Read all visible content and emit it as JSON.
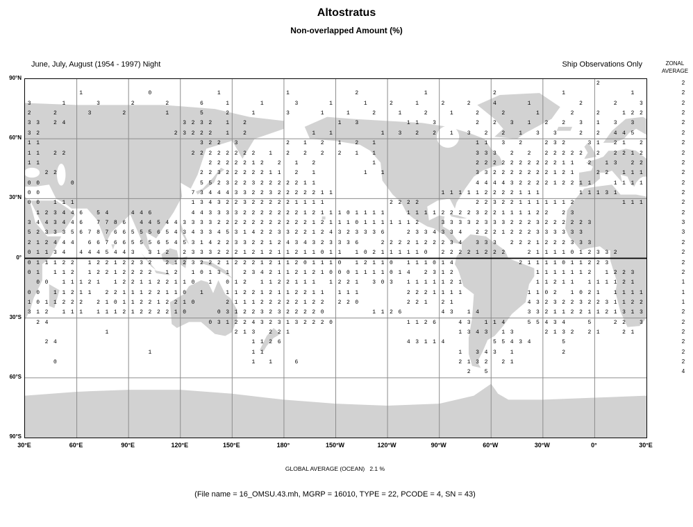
{
  "title": "Altostratus",
  "subtitle": "Non-overlapped Amount (%)",
  "header": {
    "left": "June, July, August (1954 - 1997) Night",
    "right": "Ship Observations Only",
    "zonal_line1": "ZONAL",
    "zonal_line2": "AVERAGE"
  },
  "footer": {
    "global_average": "GLOBAL AVERAGE (OCEAN)   2.1 %",
    "file_info": "(File name = 16_OMSU.43.mh, MGRP = 16010, TYPE = 22, PCODE = 4, SN = 43)"
  },
  "colors": {
    "land": "#d2d2d2",
    "grid": "#8c8c8c",
    "axis": "#000000",
    "text": "#000000"
  },
  "chart_data": {
    "type": "heatmap",
    "title": "Altostratus — Non-overlapped Amount (%)",
    "units": "%",
    "season": "June, July, August (1954 - 1997) Night",
    "observation_source": "Ship Observations Only",
    "projection": "equirectangular, 5 degree cells, longitude wraps from 30E eastward back to 30E",
    "cell_size_deg": 5,
    "global_average_ocean_pct": 2.1,
    "lat_ticks": [
      "90°N",
      "60°N",
      "30°N",
      "0°",
      "30°S",
      "60°S",
      "90°S"
    ],
    "lon_ticks": [
      "30°E",
      "60°E",
      "90°E",
      "120°E",
      "150°E",
      "180°",
      "150°W",
      "120°W",
      "90°W",
      "60°W",
      "30°W",
      "0°",
      "30°E"
    ],
    "zonal_average": [
      "2",
      "2",
      "2",
      "2",
      "2",
      "2",
      "2",
      "2",
      "2",
      "2",
      "2",
      "2",
      "2",
      "2",
      "3",
      "3",
      "2",
      "2",
      "2",
      "2",
      "1",
      "1",
      "1",
      "2",
      "2",
      "2",
      "2",
      "2",
      "2",
      "4",
      "",
      "",
      "",
      "",
      "",
      ""
    ],
    "grid_rows": [
      [
        "            ",
        "            ",
        "            ",
        "            ",
        "            ",
        "      2     "
      ],
      [
        "      1     ",
        "  0       1 ",
        "      1     ",
        "  2       1 ",
        "      2     ",
        "  1       1 "
      ],
      [
        "3   1   3   ",
        "2   2   6  1",
        "   1   3   1",
        "   1  2  1  ",
        "2  2  4   1 ",
        "    2   2  3"
      ],
      [
        "2  2   3   2",
        "    1   5  2",
        "  1   3   1 ",
        " 1  2  1  2 ",
        " 1  2  2   1",
        "   2  2  122"
      ],
      [
        "33 24       ",
        "      3232 1",
        " 2          ",
        "1 3     11 3",
        "    2 2 3 1 ",
        "2 2 3 1 3 3 "
      ],
      [
        "32          ",
        "     23222 1",
        " 2       1 1",
        "     1 3 2 2",
        " 1 3 2 2 1 3",
        " 3  2 2 445 "
      ],
      [
        "11          ",
        "        322 ",
        "3     2 1 2 ",
        "1 2 1       ",
        "    11 3 2  ",
        "232  31 21 2"
      ],
      [
        "11 22       ",
        "       22222",
        "222 1 2 2 2 ",
        "2 1 1       ",
        "    333 2 2 ",
        "22222 2 2212"
      ],
      [
        "11          ",
        "         222",
        "2212 2 1 2  ",
        "    1       ",
        "    22222222",
        "2211 2 13 22"
      ],
      [
        "  22        ",
        "        2232",
        "222211 2 1  ",
        "   1 1      ",
        "    33222222",
        "2121  22 111"
      ],
      [
        "00   0      ",
        "        5523",
        "2232222211  ",
        "            ",
        "    44443222",
        "212211  1111"
      ],
      [
        "00          ",
        "       73444",
        "332232222211",
        "            ",
        "111112222111",
        "    11131   "
      ],
      [
        "00 111      ",
        "       13432",
        "23222221111 ",
        "      2222  ",
        "    22322111",
        "1112     111"
      ],
      [
        " 123446 54  ",
        "446    44333",
        "322222221211",
        "101111  1111",
        "222232211112",
        "2 23        "
      ],
      [
        "3443446 7786",
        " 44544333322",
        "222222222121",
        "1101111112  ",
        "333323332223",
        "222223      "
      ],
      [
        "523335678766",
        "555654343345",
        "314223322124",
        "323336  2334",
        "334 22212223",
        "33333       "
      ],
      [
        "212444 66766",
        "555654531422",
        "332212434323",
        "336  2222122",
        "234 333 2221",
        "222333      "
      ],
      [
        "01134 444544",
        "3 312 233322",
        "212121121101",
        "1 102111110 ",
        "22221222  21",
        "111012332   "
      ],
      [
        "011122 12212",
        "232 21232221",
        "222121120111",
        "0 12110 1110",
        "14       211",
        "11011223    "
      ],
      [
        "01 112 12212",
        "222 12 10131",
        " 23421121210",
        "001111014 23",
        "12         1",
        "111112 1223 "
      ],
      [
        " 00 11121 12",
        "21122110 1 0",
        "12 1122111 1",
        "221 303 1111",
        "121        1",
        "1211 111121 "
      ],
      [
        "00 11211 221",
        "1122110 1  1",
        "12212112211 ",
        "111     2221",
        "111       11",
        "02 1021 1111"
      ],
      [
        "1011222 2101",
        "12212210   2",
        "11122222122 ",
        "220     221 ",
        "21        43",
        "232232231122"
      ],
      [
        "312 111 1112",
        "1222210   03",
        "12232322220 ",
        "    1126    ",
        "43 14     33",
        "211221121313"
      ],
      [
        " 24         ",
        "         031",
        "224323132220",
        "        1126",
        "  43 114  55",
        "434  5  22 3"
      ],
      [
        "         1  ",
        "            ",
        "213 221     ",
        "            ",
        "  1343 13   ",
        "2132 21  21 "
      ],
      [
        "  24        ",
        "            ",
        "  1126      ",
        "        4311",
        "4     55434 ",
        "  5         "
      ],
      [
        "            ",
        "  1         ",
        "  11        ",
        "            ",
        "  1 343 1   ",
        "  2         "
      ],
      [
        "   0        ",
        "            ",
        "  1 1  6    ",
        "            ",
        "  2132 21   ",
        "            "
      ],
      [
        "            ",
        "            ",
        "            ",
        "            ",
        "   2 5      ",
        "            "
      ],
      [
        "            ",
        "            ",
        "            ",
        "            ",
        "            ",
        "            "
      ],
      [
        "            ",
        "            ",
        "            ",
        "            ",
        "            ",
        "            "
      ],
      [
        "            ",
        "            ",
        "            ",
        "            ",
        "            ",
        "            "
      ],
      [
        "            ",
        "            ",
        "            ",
        "            ",
        "            ",
        "            "
      ],
      [
        "            ",
        "            ",
        "            ",
        "            ",
        "            ",
        "            "
      ],
      [
        "            ",
        "            ",
        "            ",
        "            ",
        "            ",
        "            "
      ]
    ]
  }
}
